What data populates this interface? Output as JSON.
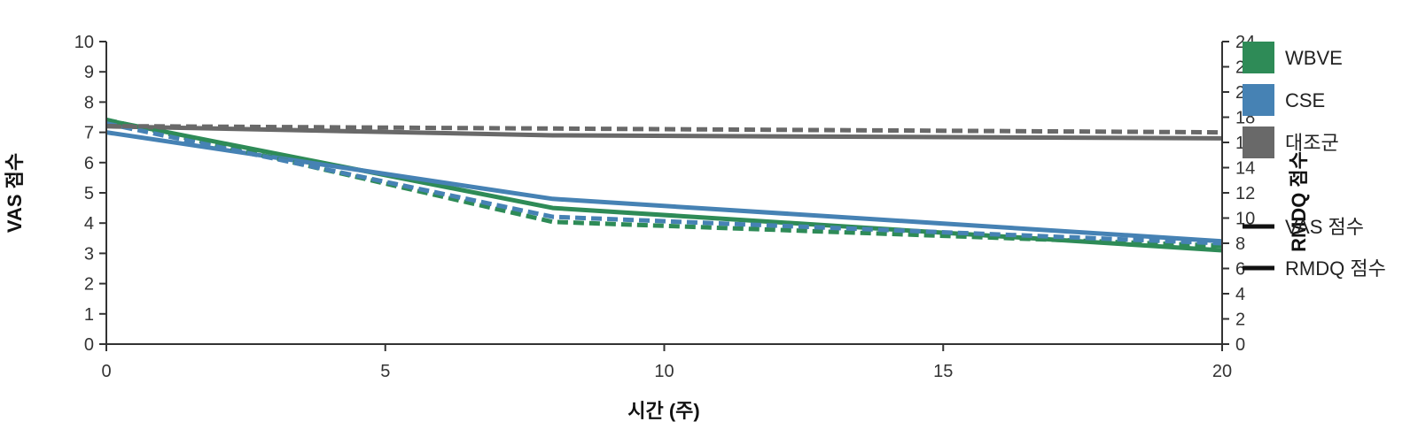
{
  "chart_data": {
    "type": "line",
    "xlabel": "시간 (주)",
    "ylabel": "VAS 점수",
    "y2label": "RMDQ 점수",
    "xlim": [
      0,
      20
    ],
    "ylim": [
      0,
      10
    ],
    "y2lim": [
      0,
      24
    ],
    "x_ticks": [
      0,
      5,
      10,
      15,
      20
    ],
    "y_ticks": [
      0,
      1,
      2,
      3,
      4,
      5,
      6,
      7,
      8,
      9,
      10
    ],
    "y2_ticks": [
      0,
      2,
      4,
      6,
      8,
      10,
      12,
      14,
      16,
      18,
      20,
      22,
      24
    ],
    "x": [
      0,
      8,
      20
    ],
    "grid": false,
    "legend_position": "right",
    "series": [
      {
        "name": "WBVE",
        "measure": "VAS 점수",
        "axis": "left",
        "values": [
          7.4,
          4.5,
          3.1
        ],
        "color": "#2e8b57",
        "style": "solid"
      },
      {
        "name": "CSE",
        "measure": "VAS 점수",
        "axis": "left",
        "values": [
          7.0,
          4.8,
          3.4
        ],
        "color": "#4682b4",
        "style": "solid"
      },
      {
        "name": "대조군",
        "measure": "VAS 점수",
        "axis": "left",
        "values": [
          7.2,
          6.9,
          6.8
        ],
        "color": "#696969",
        "style": "solid"
      },
      {
        "name": "WBVE",
        "measure": "RMDQ 점수",
        "axis": "right",
        "values": [
          17.8,
          9.7,
          7.8
        ],
        "color": "#2e8b57",
        "style": "dashed"
      },
      {
        "name": "CSE",
        "measure": "RMDQ 점수",
        "axis": "right",
        "values": [
          17.5,
          10.1,
          8.0
        ],
        "color": "#4682b4",
        "style": "dashed"
      },
      {
        "name": "대조군",
        "measure": "RMDQ 점수",
        "axis": "right",
        "values": [
          17.3,
          17.1,
          16.8
        ],
        "color": "#696969",
        "style": "dashed"
      }
    ],
    "legend": {
      "groups": [
        {
          "label": "WBVE",
          "color": "#2e8b57",
          "icon": "swatch"
        },
        {
          "label": "CSE",
          "color": "#4682b4",
          "icon": "swatch"
        },
        {
          "label": "대조군",
          "color": "#696969",
          "icon": "swatch"
        }
      ],
      "measures": [
        {
          "label": "VAS 점수",
          "icon": "line-solid"
        },
        {
          "label": "RMDQ 점수",
          "icon": "line-solid"
        }
      ]
    }
  }
}
